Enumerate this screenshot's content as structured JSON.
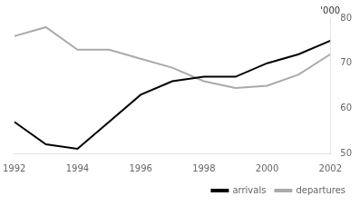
{
  "chart_data": {
    "type": "line",
    "x": [
      1992,
      1993,
      1994,
      1995,
      1996,
      1997,
      1998,
      1999,
      2000,
      2001,
      2002
    ],
    "series": [
      {
        "name": "arrivals",
        "color": "#000000",
        "values": [
          57,
          52,
          51,
          57,
          63,
          66,
          67,
          67,
          70,
          72,
          75
        ]
      },
      {
        "name": "departures",
        "color": "#aaaaaa",
        "values": [
          76,
          78,
          73,
          73,
          71,
          69,
          66,
          64.5,
          65,
          67.5,
          72
        ]
      }
    ],
    "xlim": [
      1992,
      2002
    ],
    "xticks": [
      1992,
      1994,
      1996,
      1998,
      2000,
      2002
    ],
    "ylim": [
      50,
      80
    ],
    "yticks": [
      50,
      60,
      70,
      80
    ],
    "annotations": [
      "'000"
    ],
    "grid": false,
    "legend": "bottom"
  }
}
